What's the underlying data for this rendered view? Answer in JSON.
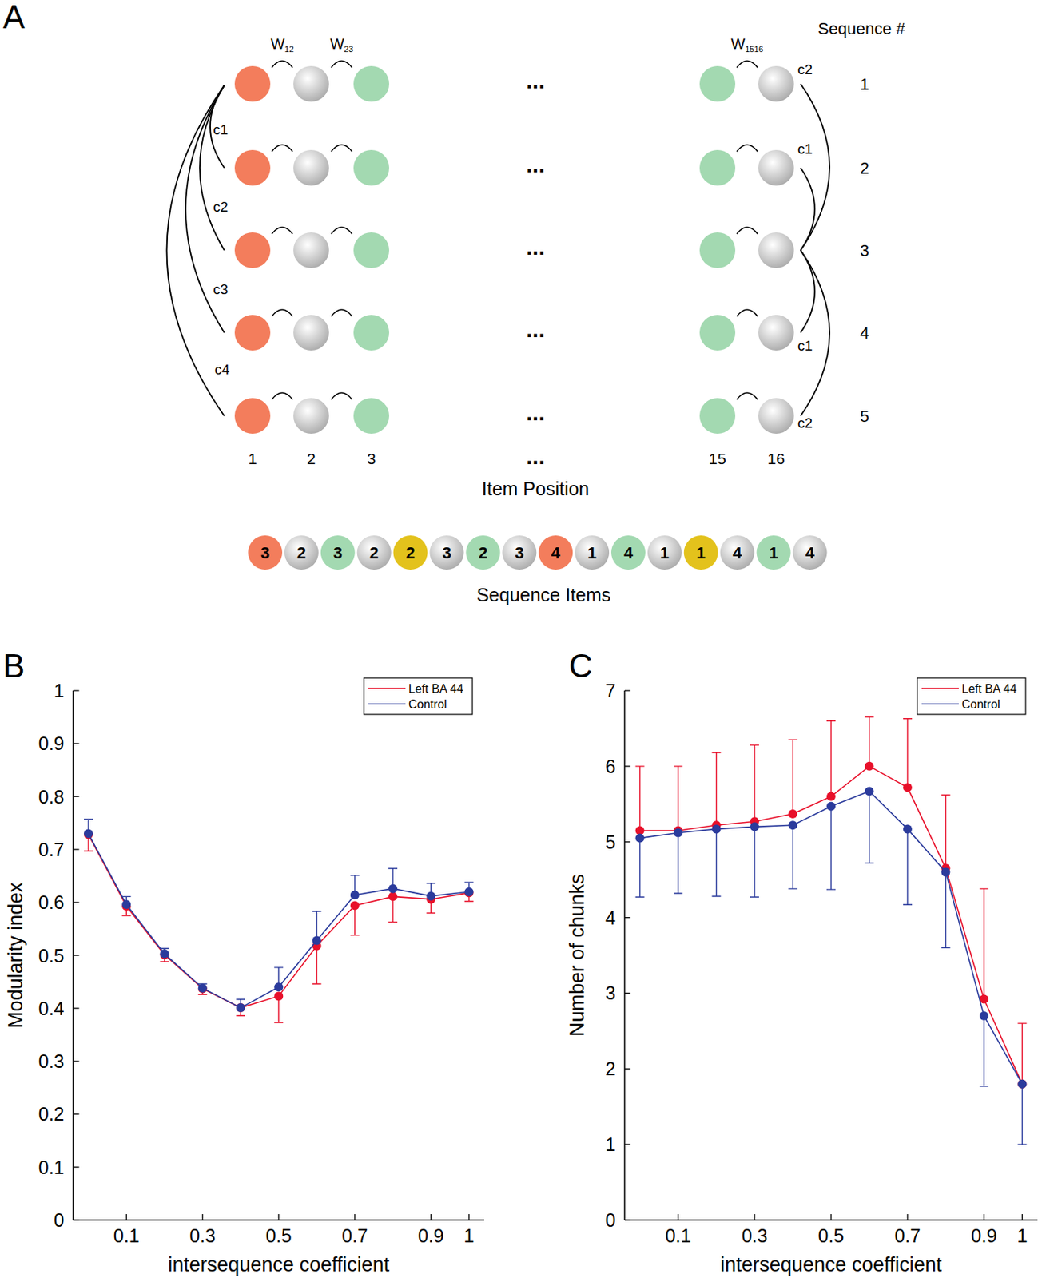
{
  "panel_a": {
    "panel_label": "A",
    "weights": [
      {
        "base": "W",
        "sub": "12"
      },
      {
        "base": "W",
        "sub": "23"
      },
      {
        "base": "W",
        "sub": "1516"
      }
    ],
    "sequence_header": "Sequence #",
    "sequence_numbers": [
      "1",
      "2",
      "3",
      "4",
      "5"
    ],
    "item_positions": [
      "1",
      "2",
      "3",
      "15",
      "16"
    ],
    "ellipsis": "...",
    "item_position_label": "Item Position",
    "left_links": [
      "c1",
      "c2",
      "c3",
      "c4"
    ],
    "right_links": [
      "c2",
      "c1",
      "c1",
      "c2"
    ],
    "sequence_items": {
      "labels": [
        "3",
        "2",
        "3",
        "2",
        "2",
        "3",
        "2",
        "3",
        "4",
        "1",
        "4",
        "1",
        "1",
        "4",
        "1",
        "4"
      ],
      "colors": [
        "orange",
        "grey",
        "green",
        "grey",
        "yellow",
        "grey",
        "green",
        "grey",
        "orange",
        "grey",
        "green",
        "grey",
        "yellow",
        "grey",
        "green",
        "grey"
      ]
    },
    "sequence_items_label": "Sequence Items"
  },
  "chart_data": [
    {
      "type": "line",
      "panel_label": "B",
      "x_label": "intersequence coefficient",
      "y_label": "Modularity index",
      "x": [
        0,
        0.1,
        0.2,
        0.3,
        0.4,
        0.5,
        0.6,
        0.7,
        0.8,
        0.9,
        1
      ],
      "xlim": [
        -0.04,
        1.04
      ],
      "xticks": [
        0.1,
        0.3,
        0.5,
        0.7,
        0.9,
        1
      ],
      "ylim": [
        0,
        1
      ],
      "yticks": [
        0,
        0.1,
        0.2,
        0.3,
        0.4,
        0.5,
        0.6,
        0.7,
        0.8,
        0.9,
        1
      ],
      "legend": "upper right",
      "marker": "circle",
      "series": [
        {
          "name": "Left BA 44",
          "color": "#e8102a",
          "values": [
            0.728,
            0.593,
            0.501,
            0.437,
            0.401,
            0.423,
            0.518,
            0.594,
            0.611,
            0.606,
            0.618
          ],
          "errors_lower": [
            0.031,
            0.018,
            0.013,
            0.011,
            0.015,
            0.05,
            0.072,
            0.056,
            0.048,
            0.026,
            0.016
          ]
        },
        {
          "name": "Control",
          "color": "#2b3b9c",
          "values": [
            0.73,
            0.596,
            0.503,
            0.438,
            0.401,
            0.44,
            0.528,
            0.614,
            0.626,
            0.612,
            0.62
          ],
          "errors_upper": [
            0.027,
            0.015,
            0.01,
            0.008,
            0.016,
            0.037,
            0.055,
            0.037,
            0.038,
            0.024,
            0.018
          ]
        }
      ]
    },
    {
      "type": "line",
      "panel_label": "C",
      "x_label": "intersequence coefficient",
      "y_label": "Number of chunks",
      "x": [
        0,
        0.1,
        0.2,
        0.3,
        0.4,
        0.5,
        0.6,
        0.7,
        0.8,
        0.9,
        1
      ],
      "xlim": [
        -0.04,
        1.04
      ],
      "xticks": [
        0.1,
        0.3,
        0.5,
        0.7,
        0.9,
        1
      ],
      "ylim": [
        0,
        7
      ],
      "yticks": [
        0,
        1,
        2,
        3,
        4,
        5,
        6,
        7
      ],
      "legend": "upper right",
      "marker": "circle",
      "series": [
        {
          "name": "Left BA 44",
          "color": "#e8102a",
          "values": [
            5.15,
            5.15,
            5.22,
            5.27,
            5.37,
            5.6,
            6.0,
            5.72,
            4.65,
            2.92,
            1.8
          ],
          "errors_upper": [
            0.85,
            0.85,
            0.96,
            1.01,
            0.98,
            1.0,
            0.65,
            0.91,
            0.97,
            1.46,
            0.8
          ]
        },
        {
          "name": "Control",
          "color": "#2b3b9c",
          "values": [
            5.05,
            5.12,
            5.17,
            5.2,
            5.22,
            5.47,
            5.67,
            5.17,
            4.6,
            2.7,
            1.8
          ],
          "errors_lower": [
            0.78,
            0.8,
            0.89,
            0.93,
            0.84,
            1.1,
            0.95,
            1.0,
            1.0,
            0.93,
            0.8
          ]
        }
      ]
    }
  ]
}
